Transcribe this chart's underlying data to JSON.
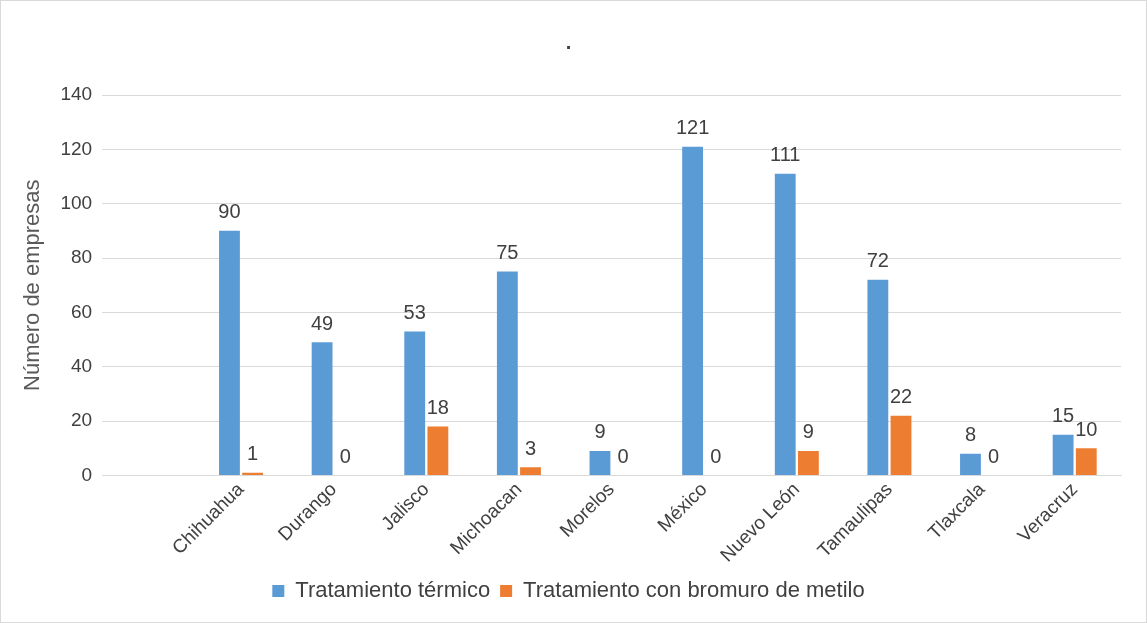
{
  "chart_data": {
    "type": "bar",
    "title": ".",
    "ylabel": "Número de empresas",
    "categories": [
      null,
      "Chihuahua",
      "Durango",
      "Jalisco",
      "Michoacan",
      "Morelos",
      "México",
      "Nuevo León",
      "Tamaulipas",
      "Tlaxcala",
      "Veracruz"
    ],
    "series": [
      {
        "name": "Tratamiento térmico",
        "color": "#5b9bd5",
        "values": [
          null,
          90,
          49,
          53,
          75,
          9,
          121,
          111,
          72,
          8,
          15
        ]
      },
      {
        "name": "Tratamiento con bromuro de metilo",
        "color": "#ed7d31",
        "values": [
          null,
          1,
          0,
          18,
          3,
          0,
          0,
          9,
          22,
          0,
          10
        ]
      }
    ],
    "ylim": [
      0,
      140
    ],
    "yticks": [
      0,
      20,
      40,
      60,
      80,
      100,
      120,
      140
    ],
    "grid": "y",
    "legend": "bottom",
    "data_labels": true
  }
}
